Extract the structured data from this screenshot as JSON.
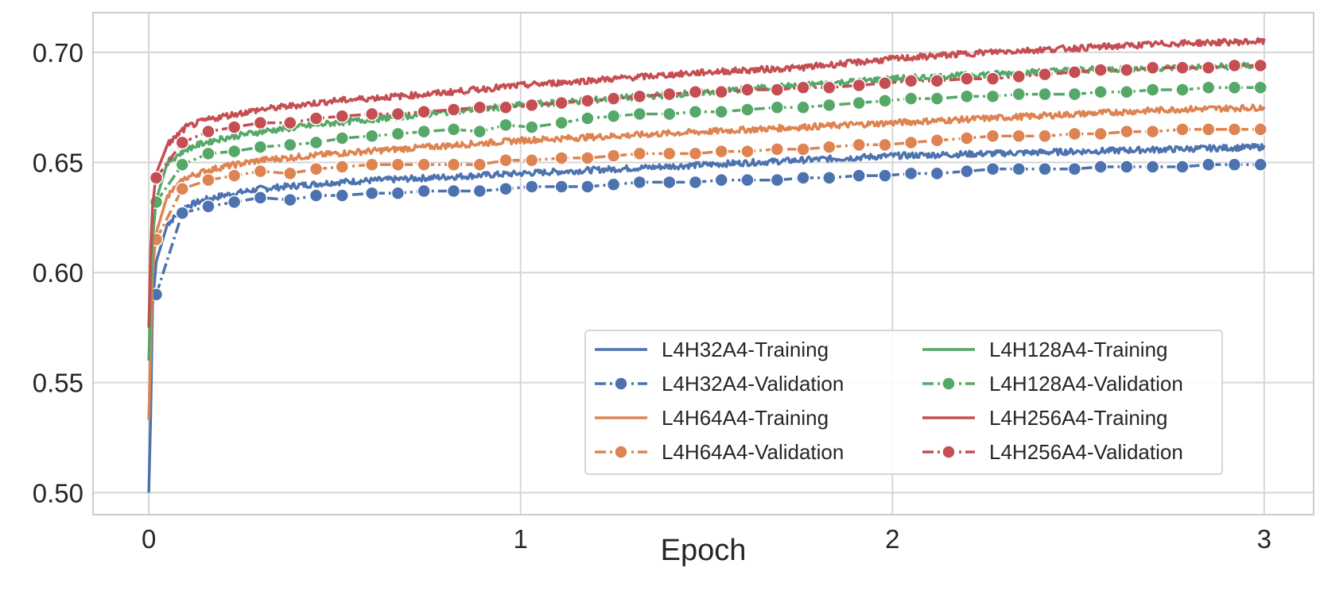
{
  "chart_data": {
    "type": "line",
    "title": "",
    "xlabel": "Epoch",
    "ylabel": "",
    "xlim": [
      -0.15,
      3.15
    ],
    "ylim": [
      0.49,
      0.718
    ],
    "x_ticks": [
      0,
      1,
      2,
      3
    ],
    "x_tick_labels": [
      "0",
      "1",
      "2",
      "3"
    ],
    "y_ticks": [
      0.5,
      0.55,
      0.6,
      0.65,
      0.7
    ],
    "y_tick_labels": [
      "0.50",
      "0.55",
      "0.60",
      "0.65",
      "0.70"
    ],
    "grid": true,
    "legend_position": "bottom-right",
    "series": [
      {
        "name": "L4H32A4-Training",
        "style": "solid",
        "color": "#4c72b0",
        "x": [
          0.0,
          0.005,
          0.01,
          0.02,
          0.05,
          0.1,
          0.15,
          0.2,
          0.3,
          0.5,
          0.75,
          1.0,
          1.25,
          1.5,
          1.75,
          2.0,
          2.25,
          2.5,
          2.75,
          3.0
        ],
        "y": [
          0.5,
          0.535,
          0.585,
          0.605,
          0.622,
          0.63,
          0.633,
          0.635,
          0.638,
          0.641,
          0.643,
          0.645,
          0.647,
          0.649,
          0.651,
          0.653,
          0.654,
          0.655,
          0.656,
          0.657
        ]
      },
      {
        "name": "L4H32A4-Validation",
        "style": "dashed",
        "color": "#4c72b0",
        "x": [
          0.02,
          0.09,
          0.16,
          0.23,
          0.3,
          0.38,
          0.45,
          0.52,
          0.6,
          0.67,
          0.74,
          0.82,
          0.89,
          0.96,
          1.03,
          1.11,
          1.18,
          1.25,
          1.32,
          1.4,
          1.47,
          1.54,
          1.61,
          1.69,
          1.76,
          1.83,
          1.91,
          1.98,
          2.05,
          2.12,
          2.2,
          2.27,
          2.34,
          2.41,
          2.49,
          2.56,
          2.63,
          2.7,
          2.78,
          2.85,
          2.92,
          2.99
        ],
        "y": [
          0.59,
          0.627,
          0.63,
          0.632,
          0.634,
          0.633,
          0.635,
          0.635,
          0.636,
          0.636,
          0.637,
          0.637,
          0.637,
          0.638,
          0.639,
          0.639,
          0.639,
          0.64,
          0.641,
          0.641,
          0.641,
          0.642,
          0.642,
          0.642,
          0.643,
          0.643,
          0.644,
          0.644,
          0.645,
          0.645,
          0.646,
          0.647,
          0.647,
          0.647,
          0.647,
          0.648,
          0.648,
          0.648,
          0.648,
          0.649,
          0.649,
          0.649
        ]
      },
      {
        "name": "L4H64A4-Training",
        "style": "solid",
        "color": "#dd8452",
        "x": [
          0.0,
          0.005,
          0.01,
          0.02,
          0.05,
          0.1,
          0.15,
          0.2,
          0.3,
          0.5,
          0.75,
          1.0,
          1.25,
          1.5,
          1.75,
          2.0,
          2.25,
          2.5,
          2.75,
          3.0
        ],
        "y": [
          0.533,
          0.565,
          0.6,
          0.618,
          0.635,
          0.643,
          0.646,
          0.648,
          0.651,
          0.654,
          0.657,
          0.66,
          0.662,
          0.664,
          0.666,
          0.668,
          0.67,
          0.672,
          0.674,
          0.675
        ]
      },
      {
        "name": "L4H64A4-Validation",
        "style": "dashed",
        "color": "#dd8452",
        "x": [
          0.02,
          0.09,
          0.16,
          0.23,
          0.3,
          0.38,
          0.45,
          0.52,
          0.6,
          0.67,
          0.74,
          0.82,
          0.89,
          0.96,
          1.03,
          1.11,
          1.18,
          1.25,
          1.32,
          1.4,
          1.47,
          1.54,
          1.61,
          1.69,
          1.76,
          1.83,
          1.91,
          1.98,
          2.05,
          2.12,
          2.2,
          2.27,
          2.34,
          2.41,
          2.49,
          2.56,
          2.63,
          2.7,
          2.78,
          2.85,
          2.92,
          2.99
        ],
        "y": [
          0.615,
          0.638,
          0.642,
          0.644,
          0.646,
          0.645,
          0.647,
          0.648,
          0.649,
          0.649,
          0.649,
          0.649,
          0.649,
          0.651,
          0.651,
          0.652,
          0.652,
          0.653,
          0.654,
          0.654,
          0.654,
          0.655,
          0.655,
          0.656,
          0.656,
          0.657,
          0.658,
          0.658,
          0.659,
          0.66,
          0.661,
          0.662,
          0.662,
          0.662,
          0.663,
          0.663,
          0.664,
          0.664,
          0.665,
          0.665,
          0.665,
          0.665
        ]
      },
      {
        "name": "L4H128A4-Training",
        "style": "solid",
        "color": "#55a868",
        "x": [
          0.0,
          0.005,
          0.01,
          0.02,
          0.05,
          0.1,
          0.15,
          0.2,
          0.3,
          0.5,
          0.75,
          1.0,
          1.25,
          1.5,
          1.75,
          2.0,
          2.25,
          2.5,
          2.75,
          3.0
        ],
        "y": [
          0.56,
          0.59,
          0.615,
          0.633,
          0.65,
          0.656,
          0.659,
          0.661,
          0.664,
          0.668,
          0.672,
          0.676,
          0.679,
          0.682,
          0.685,
          0.688,
          0.69,
          0.692,
          0.693,
          0.694
        ]
      },
      {
        "name": "L4H128A4-Validation",
        "style": "dashed",
        "color": "#55a868",
        "x": [
          0.02,
          0.09,
          0.16,
          0.23,
          0.3,
          0.38,
          0.45,
          0.52,
          0.6,
          0.67,
          0.74,
          0.82,
          0.89,
          0.96,
          1.03,
          1.11,
          1.18,
          1.25,
          1.32,
          1.4,
          1.47,
          1.54,
          1.61,
          1.69,
          1.76,
          1.83,
          1.91,
          1.98,
          2.05,
          2.12,
          2.2,
          2.27,
          2.34,
          2.41,
          2.49,
          2.56,
          2.63,
          2.7,
          2.78,
          2.85,
          2.92,
          2.99
        ],
        "y": [
          0.632,
          0.649,
          0.654,
          0.655,
          0.657,
          0.658,
          0.659,
          0.661,
          0.662,
          0.663,
          0.664,
          0.665,
          0.664,
          0.667,
          0.666,
          0.668,
          0.67,
          0.671,
          0.672,
          0.672,
          0.673,
          0.673,
          0.674,
          0.675,
          0.675,
          0.676,
          0.677,
          0.678,
          0.679,
          0.679,
          0.68,
          0.68,
          0.681,
          0.681,
          0.681,
          0.682,
          0.682,
          0.683,
          0.683,
          0.684,
          0.684,
          0.684
        ]
      },
      {
        "name": "L4H256A4-Training",
        "style": "solid",
        "color": "#c44e52",
        "x": [
          0.0,
          0.005,
          0.01,
          0.02,
          0.05,
          0.1,
          0.15,
          0.2,
          0.3,
          0.5,
          0.75,
          1.0,
          1.25,
          1.5,
          1.75,
          2.0,
          2.25,
          2.5,
          2.75,
          3.0
        ],
        "y": [
          0.575,
          0.61,
          0.63,
          0.645,
          0.658,
          0.666,
          0.669,
          0.671,
          0.674,
          0.678,
          0.681,
          0.685,
          0.688,
          0.691,
          0.693,
          0.697,
          0.7,
          0.702,
          0.704,
          0.705
        ]
      },
      {
        "name": "L4H256A4-Validation",
        "style": "dashed",
        "color": "#c44e52",
        "x": [
          0.02,
          0.09,
          0.16,
          0.23,
          0.3,
          0.38,
          0.45,
          0.52,
          0.6,
          0.67,
          0.74,
          0.82,
          0.89,
          0.96,
          1.03,
          1.11,
          1.18,
          1.25,
          1.32,
          1.4,
          1.47,
          1.54,
          1.61,
          1.69,
          1.76,
          1.83,
          1.91,
          1.98,
          2.05,
          2.12,
          2.2,
          2.27,
          2.34,
          2.41,
          2.49,
          2.56,
          2.63,
          2.7,
          2.78,
          2.85,
          2.92,
          2.99
        ],
        "y": [
          0.643,
          0.659,
          0.664,
          0.666,
          0.668,
          0.668,
          0.67,
          0.671,
          0.672,
          0.672,
          0.673,
          0.674,
          0.675,
          0.675,
          0.676,
          0.677,
          0.678,
          0.679,
          0.68,
          0.681,
          0.682,
          0.682,
          0.683,
          0.683,
          0.684,
          0.684,
          0.685,
          0.686,
          0.687,
          0.687,
          0.688,
          0.688,
          0.689,
          0.69,
          0.691,
          0.692,
          0.692,
          0.693,
          0.693,
          0.693,
          0.694,
          0.694
        ]
      }
    ]
  }
}
